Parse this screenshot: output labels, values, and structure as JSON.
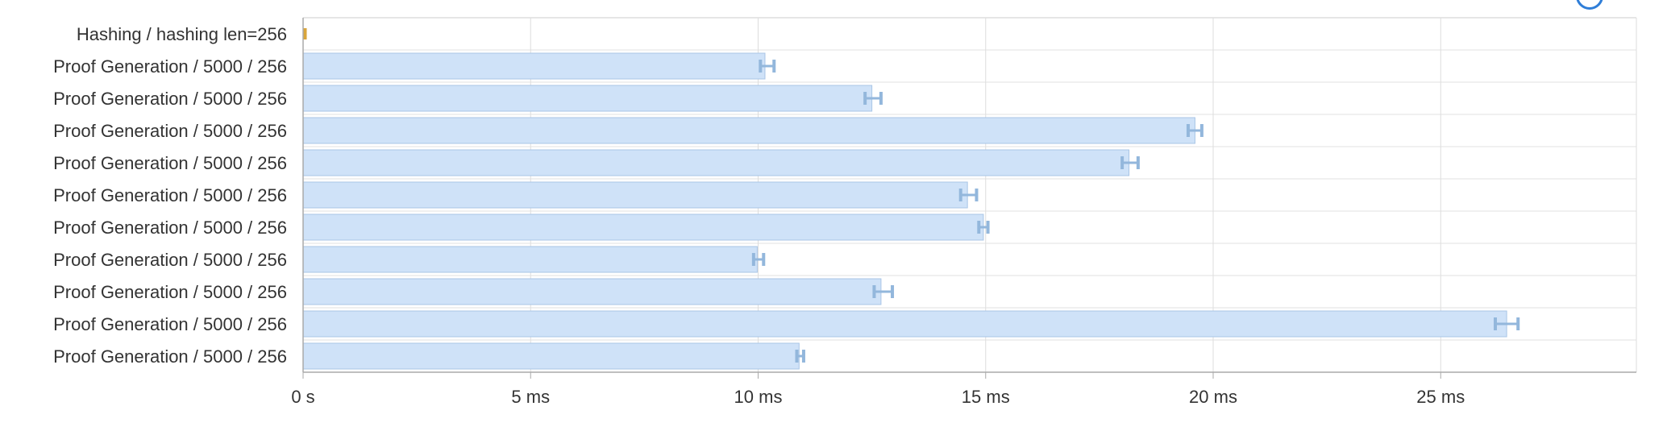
{
  "chart_data": {
    "type": "bar",
    "orientation": "horizontal",
    "title": "",
    "xlabel": "",
    "ylabel": "",
    "categories": [
      "Hashing / hashing len=256",
      "Proof Generation / 5000 / 256",
      "Proof Generation / 5000 / 256",
      "Proof Generation / 5000 / 256",
      "Proof Generation / 5000 / 256",
      "Proof Generation / 5000 / 256",
      "Proof Generation / 5000 / 256",
      "Proof Generation / 5000 / 256",
      "Proof Generation / 5000 / 256",
      "Proof Generation / 5000 / 256",
      "Proof Generation / 5000 / 256"
    ],
    "values_ms": [
      0.08,
      10.15,
      12.5,
      19.6,
      18.15,
      14.6,
      14.95,
      9.98,
      12.7,
      26.45,
      10.9
    ],
    "error_low_ms": [
      0.05,
      10.05,
      12.35,
      19.45,
      18.0,
      14.45,
      14.85,
      9.9,
      12.55,
      26.2,
      10.85
    ],
    "error_high_ms": [
      0.12,
      10.35,
      12.7,
      19.75,
      18.35,
      14.8,
      15.05,
      10.12,
      12.95,
      26.7,
      11.0
    ],
    "colors": [
      "#d9a53b",
      "#cfe2f8",
      "#cfe2f8",
      "#cfe2f8",
      "#cfe2f8",
      "#cfe2f8",
      "#cfe2f8",
      "#cfe2f8",
      "#cfe2f8",
      "#cfe2f8",
      "#cfe2f8"
    ],
    "error_color": "#93b7dc",
    "bar_border_color": "#a9c5e6",
    "xlim_ms": [
      0,
      29.3
    ],
    "x_ticks_ms": [
      0,
      5,
      10,
      15,
      20,
      25
    ],
    "x_tick_labels": [
      "0 s",
      "5 ms",
      "10 ms",
      "15 ms",
      "20 ms",
      "25 ms"
    ],
    "grid": true,
    "legend": "none"
  }
}
